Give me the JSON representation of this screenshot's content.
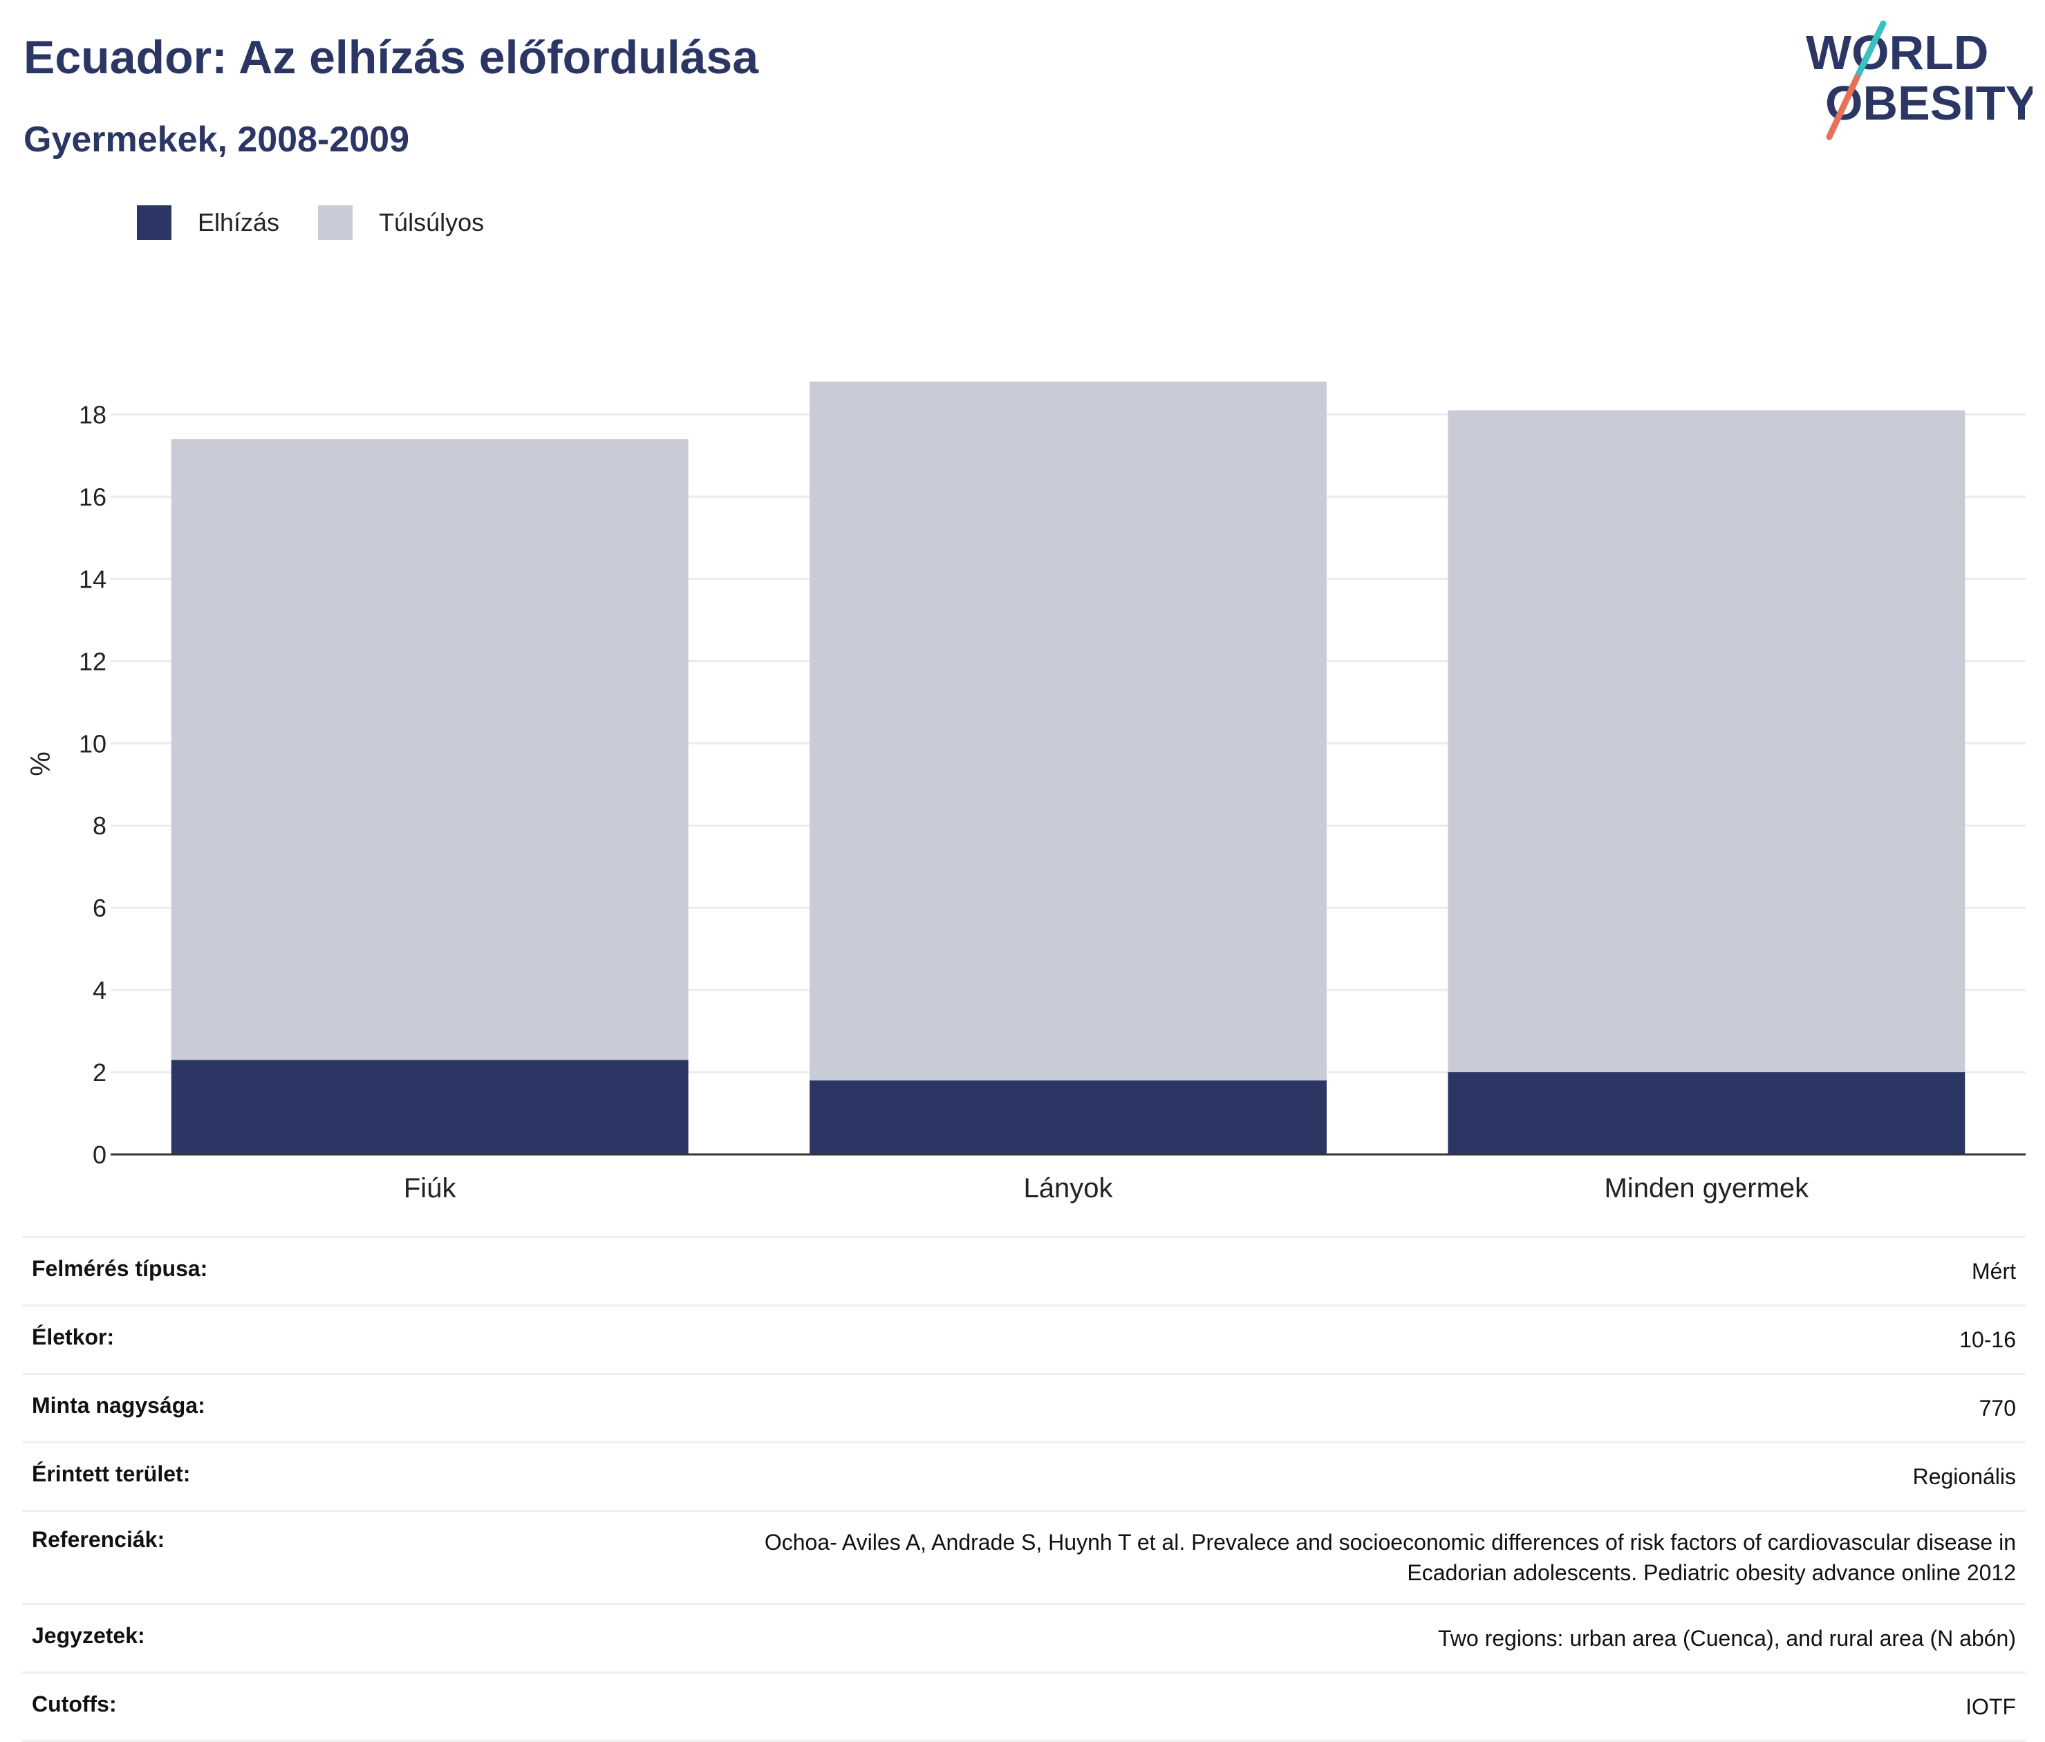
{
  "header": {
    "title": "Ecuador: Az elhízás előfordulása",
    "subtitle": "Gyermekek, 2008-2009"
  },
  "logo": {
    "line1": "WORLD",
    "line2": "OBESITY",
    "colors": {
      "text": "#2b3664",
      "slash_top": "#3bbfbf",
      "slash_bottom": "#e8705a"
    }
  },
  "colors": {
    "obese": "#2b3664",
    "overweight": "#c9cbd7",
    "grid": "#e9ebf0",
    "axis": "#333333"
  },
  "chart_data": {
    "type": "bar",
    "stacked": true,
    "title": "Ecuador: Az elhízás előfordulása",
    "subtitle": "Gyermekek, 2008-2009",
    "xlabel": "",
    "ylabel": "%",
    "ylim": [
      0,
      19
    ],
    "yticks": [
      0,
      2,
      4,
      6,
      8,
      10,
      12,
      14,
      16,
      18
    ],
    "grid": true,
    "legend_position": "top-left",
    "categories": [
      "Fiúk",
      "Lányok",
      "Minden gyermek"
    ],
    "series": [
      {
        "name": "Elhízás",
        "color": "#2b3664",
        "values": [
          2.3,
          1.8,
          2.0
        ]
      },
      {
        "name": "Túlsúlyos",
        "color": "#c9cbd7",
        "values": [
          15.1,
          17.0,
          16.1
        ]
      }
    ]
  },
  "info_table": [
    {
      "key": "Felmérés típusa:",
      "value": "Mért"
    },
    {
      "key": "Életkor:",
      "value": "10-16"
    },
    {
      "key": "Minta nagysága:",
      "value": "770"
    },
    {
      "key": "Érintett terület:",
      "value": "Regionális"
    },
    {
      "key": "Referenciák:",
      "value": "Ochoa- Aviles A, Andrade S, Huynh T et al. Prevalece and socioeconomic differences of risk factors of cardiovascular disease in",
      "value2": "Ecadorian adolescents. Pediatric obesity advance online 2012"
    },
    {
      "key": "Jegyzetek:",
      "value": "Two regions: urban area (Cuenca), and rural area (N abón)"
    },
    {
      "key": "Cutoffs:",
      "value": "IOTF"
    }
  ]
}
